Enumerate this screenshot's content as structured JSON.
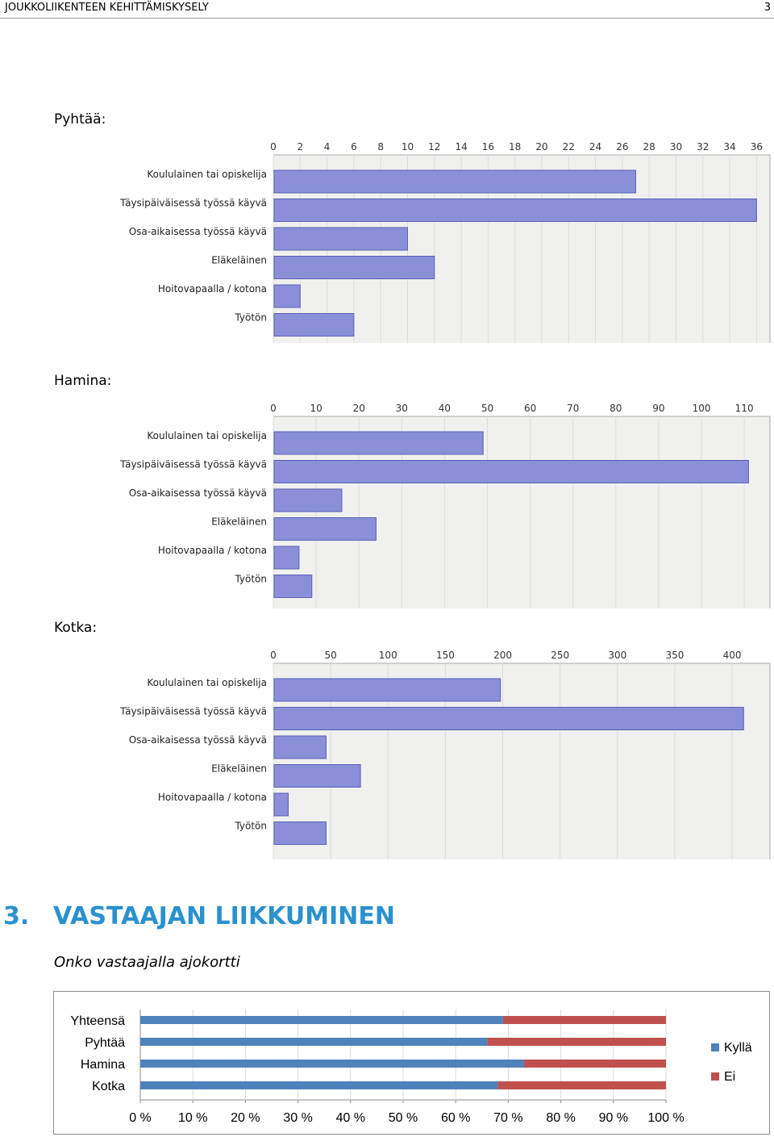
{
  "header": {
    "title": "JOUKKOLIIKENTEEN KEHITTÄMISKYSELY",
    "page_number": "3"
  },
  "charts": {
    "pyhtaa_label": "Pyhtää:",
    "hamina_label": "Hamina:",
    "kotka_label": "Kotka:"
  },
  "section": {
    "number": "3.",
    "title": "VASTAAJAN LIIKKUMINEN",
    "question": "Onko vastaajalla ajokortti"
  },
  "colors": {
    "bar_fill": "#8a8fd8",
    "bar_edge": "#5a60b8",
    "plot_bg": "#f0f1ee",
    "kylla": "#4f81bd",
    "ei": "#c0504d",
    "heading": "#2a91cf"
  },
  "chart_data": [
    {
      "type": "bar",
      "orientation": "horizontal",
      "title": "Pyhtää:",
      "categories": [
        "Koululainen tai opiskelija",
        "Täysipäiväisessä työssä käyvä",
        "Osa-aikaisessa työssä käyvä",
        "Eläkeläinen",
        "Hoitovapaalla / kotona",
        "Työtön"
      ],
      "values": [
        27,
        36,
        10,
        12,
        2,
        6
      ],
      "x_ticks": [
        0,
        2,
        4,
        6,
        8,
        10,
        12,
        14,
        16,
        18,
        20,
        22,
        24,
        26,
        28,
        30,
        32,
        34,
        36
      ],
      "xlim": [
        0,
        37
      ],
      "grid": true
    },
    {
      "type": "bar",
      "orientation": "horizontal",
      "title": "Hamina:",
      "categories": [
        "Koululainen tai opiskelija",
        "Täysipäiväisessä työssä käyvä",
        "Osa-aikaisessa työssä käyvä",
        "Eläkeläinen",
        "Hoitovapaalla / kotona",
        "Työtön"
      ],
      "values": [
        49,
        111,
        16,
        24,
        6,
        9
      ],
      "x_ticks": [
        0,
        10,
        20,
        30,
        40,
        50,
        60,
        70,
        80,
        90,
        100,
        110
      ],
      "xlim": [
        0,
        116
      ],
      "grid": true
    },
    {
      "type": "bar",
      "orientation": "horizontal",
      "title": "Kotka:",
      "categories": [
        "Koululainen tai opiskelija",
        "Täysipäiväisessä työssä käyvä",
        "Osa-aikaisessa työssä käyvä",
        "Eläkeläinen",
        "Hoitovapaalla / kotona",
        "Työtön"
      ],
      "values": [
        198,
        410,
        46,
        76,
        13,
        46
      ],
      "x_ticks": [
        0,
        50,
        100,
        150,
        200,
        250,
        300,
        350,
        400
      ],
      "xlim": [
        0,
        433
      ],
      "grid": true
    },
    {
      "type": "bar",
      "orientation": "horizontal",
      "stacked": "100%",
      "title": "Onko vastaajalla ajokortti",
      "categories": [
        "Yhteensä",
        "Pyhtää",
        "Hamina",
        "Kotka"
      ],
      "series": [
        {
          "name": "Kyllä",
          "values": [
            69,
            66,
            73,
            68
          ]
        },
        {
          "name": "Ei",
          "values": [
            31,
            34,
            27,
            32
          ]
        }
      ],
      "x_ticks": [
        "0 %",
        "10 %",
        "20 %",
        "30 %",
        "40 %",
        "50 %",
        "60 %",
        "70 %",
        "80 %",
        "90 %",
        "100 %"
      ],
      "xlim": [
        0,
        100
      ],
      "legend": "right"
    }
  ]
}
